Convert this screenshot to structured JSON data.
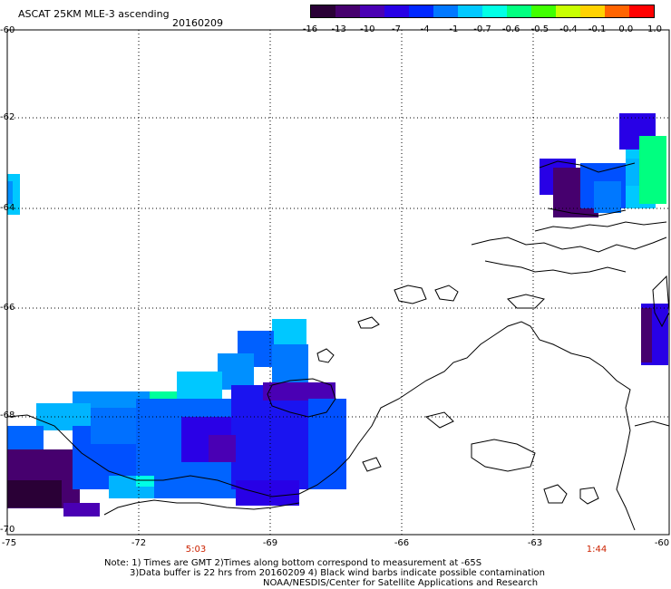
{
  "header": {
    "title": "ASCAT 25KM MLE-3 ascending",
    "date": "20160209"
  },
  "colorbar": {
    "labels": [
      "-16",
      "-13",
      "-10",
      "-7",
      "-4",
      "-1",
      "-0.7",
      "-0.6",
      "-0.5",
      "-0.4",
      "-0.1",
      "0.0",
      "1.0"
    ],
    "colors": [
      "#2a0036",
      "#46006e",
      "#4a00b4",
      "#2800e6",
      "#0028ff",
      "#0078ff",
      "#00c8ff",
      "#00ffe6",
      "#00ff80",
      "#40ff00",
      "#c8ff00",
      "#ffd200",
      "#ff6400",
      "#ff0000"
    ]
  },
  "axes": {
    "lat_labels": [
      "-60",
      "-62",
      "-64",
      "-66",
      "-68",
      "-70"
    ],
    "lon_labels": [
      "-75",
      "-72",
      "-69",
      "-66",
      "-63",
      "-60"
    ]
  },
  "times": {
    "left": "5:03",
    "right": "1:44"
  },
  "notes": {
    "line1": "Note: 1) Times are GMT 2)Times along bottom correspond to measurement at -65S",
    "line2": "3)Data buffer is 22 hrs from 20160209 4) Black wind barbs indicate possible contamination",
    "line3": "NOAA/NESDIS/Center for Satellite Applications and Research"
  }
}
